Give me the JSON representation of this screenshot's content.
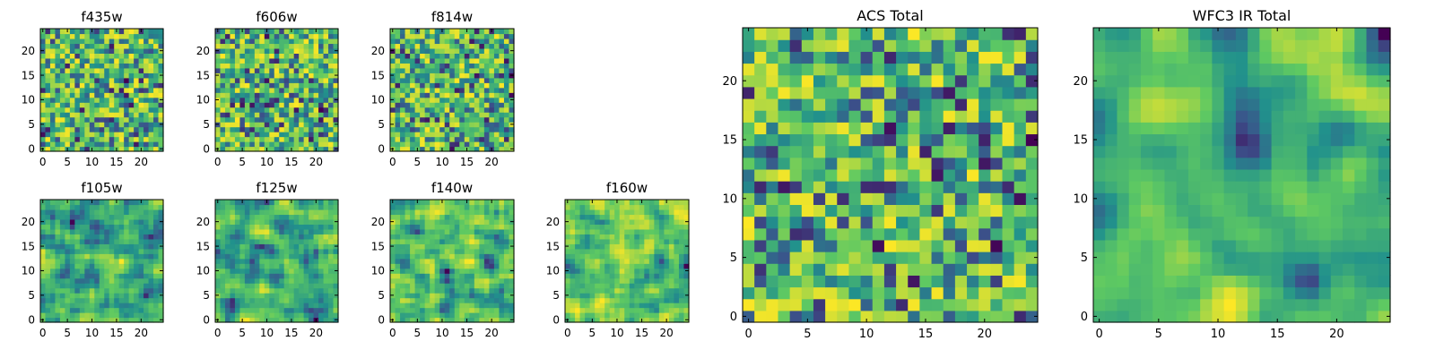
{
  "figure": {
    "colormap": "viridis",
    "colormap_stops": [
      "#440154",
      "#3b528b",
      "#21918c",
      "#5ec962",
      "#fde725"
    ],
    "panel_background": "#ffffff",
    "axis_color": "#000000"
  },
  "chart_data": [
    {
      "type": "heatmap",
      "title": "f435w",
      "grid": false,
      "nx": 25,
      "ny": 25,
      "xlim": [
        0,
        24
      ],
      "ylim": [
        0,
        24
      ],
      "xticks": [
        0,
        5,
        10,
        15,
        20
      ],
      "yticks": [
        0,
        5,
        10,
        15,
        20
      ],
      "data_description": "random noise image 25x25, values mapped to viridis"
    },
    {
      "type": "heatmap",
      "title": "f606w",
      "grid": false,
      "nx": 25,
      "ny": 25,
      "xlim": [
        0,
        24
      ],
      "ylim": [
        0,
        24
      ],
      "xticks": [
        0,
        5,
        10,
        15,
        20
      ],
      "yticks": [
        0,
        5,
        10,
        15,
        20
      ]
    },
    {
      "type": "heatmap",
      "title": "f814w",
      "grid": false,
      "nx": 25,
      "ny": 25,
      "xlim": [
        0,
        24
      ],
      "ylim": [
        0,
        24
      ],
      "xticks": [
        0,
        5,
        10,
        15,
        20
      ],
      "yticks": [
        0,
        5,
        10,
        15,
        20
      ]
    },
    {
      "type": "heatmap",
      "title": "f105w",
      "grid": false,
      "nx": 25,
      "ny": 25,
      "xlim": [
        0,
        24
      ],
      "ylim": [
        0,
        24
      ],
      "xticks": [
        0,
        5,
        10,
        15,
        20
      ],
      "yticks": [
        0,
        5,
        10,
        15,
        20
      ]
    },
    {
      "type": "heatmap",
      "title": "f125w",
      "grid": false,
      "nx": 25,
      "ny": 25,
      "xlim": [
        0,
        24
      ],
      "ylim": [
        0,
        24
      ],
      "xticks": [
        0,
        5,
        10,
        15,
        20
      ],
      "yticks": [
        0,
        5,
        10,
        15,
        20
      ]
    },
    {
      "type": "heatmap",
      "title": "f140w",
      "grid": false,
      "nx": 25,
      "ny": 25,
      "xlim": [
        0,
        24
      ],
      "ylim": [
        0,
        24
      ],
      "xticks": [
        0,
        5,
        10,
        15,
        20
      ],
      "yticks": [
        0,
        5,
        10,
        15,
        20
      ]
    },
    {
      "type": "heatmap",
      "title": "f160w",
      "grid": false,
      "nx": 25,
      "ny": 25,
      "xlim": [
        0,
        24
      ],
      "ylim": [
        0,
        24
      ],
      "xticks": [
        0,
        5,
        10,
        15,
        20
      ],
      "yticks": [
        0,
        5,
        10,
        15,
        20
      ]
    },
    {
      "type": "heatmap",
      "title": "ACS Total",
      "grid": false,
      "nx": 25,
      "ny": 25,
      "xlim": [
        0,
        24
      ],
      "ylim": [
        0,
        24
      ],
      "xticks": [
        0,
        5,
        10,
        15,
        20
      ],
      "yticks": [
        0,
        5,
        10,
        15,
        20
      ]
    },
    {
      "type": "heatmap",
      "title": "WFC3 IR Total",
      "grid": false,
      "nx": 25,
      "ny": 25,
      "xlim": [
        0,
        24
      ],
      "ylim": [
        0,
        24
      ],
      "xticks": [
        0,
        5,
        10,
        15,
        20
      ],
      "yticks": [
        0,
        5,
        10,
        15,
        20
      ]
    }
  ]
}
